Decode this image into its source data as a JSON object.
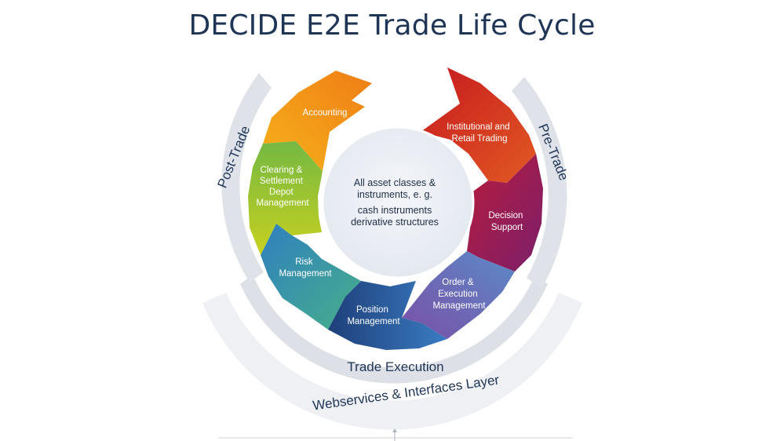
{
  "title": "DECIDE E2E Trade Life Cycle",
  "center": {
    "line1": "All asset classes &",
    "line2": "instruments, e. g.",
    "line3": "cash instruments",
    "line4": "derivative structures"
  },
  "rings": {
    "post_trade": "Post-Trade",
    "pre_trade": "Pre-Trade",
    "trade_execution": "Trade Execution",
    "webservices": "Webservices & Interfaces Layer"
  },
  "segments": [
    {
      "id": "accounting",
      "lines": [
        "Accounting"
      ],
      "color_start": "#f7b21c",
      "color_end": "#ef7d14"
    },
    {
      "id": "institutional-retail-trading",
      "lines": [
        "Institutional and",
        "Retail Trading"
      ],
      "color_start": "#c5181f",
      "color_end": "#e25a22"
    },
    {
      "id": "decision-support",
      "lines": [
        "Decision",
        "Support"
      ],
      "color_start": "#b81c3c",
      "color_end": "#7a1e6b"
    },
    {
      "id": "order-execution-management",
      "lines": [
        "Order &",
        "Execution",
        "Management"
      ],
      "color_start": "#7b4ea6",
      "color_end": "#5b8bc8"
    },
    {
      "id": "position-management",
      "lines": [
        "Position",
        "Management"
      ],
      "color_start": "#1e3f7a",
      "color_end": "#3a7cc2"
    },
    {
      "id": "risk-management",
      "lines": [
        "Risk",
        "Management"
      ],
      "color_start": "#2f7fbf",
      "color_end": "#47b08a"
    },
    {
      "id": "clearing-settlement",
      "lines": [
        "Clearing &",
        "Settlement",
        "Depot",
        "Management"
      ],
      "color_start": "#74b843",
      "color_end": "#c7d11f"
    }
  ]
}
